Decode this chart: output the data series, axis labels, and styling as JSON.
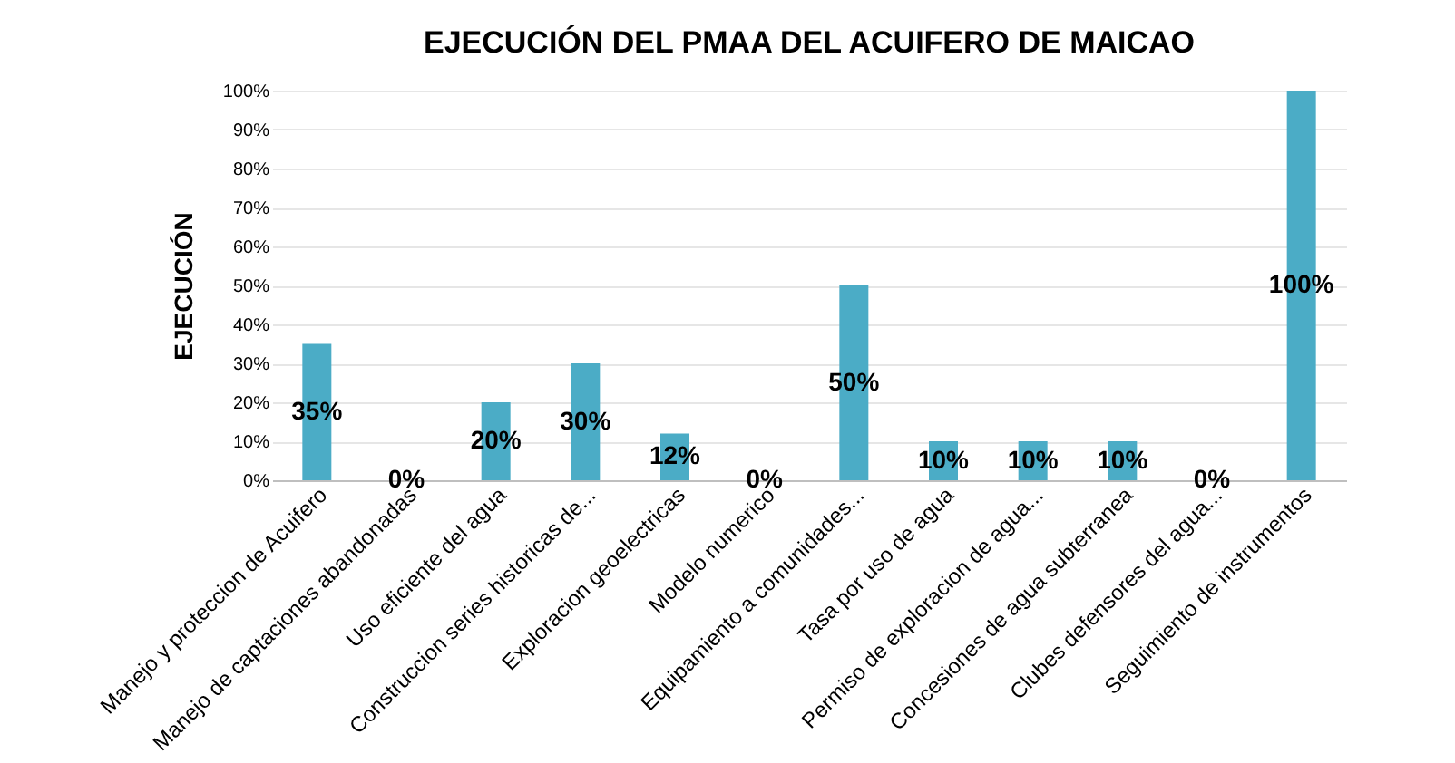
{
  "chart_data": {
    "type": "bar",
    "title": "EJECUCIÓN DEL PMAA DEL ACUIFERO DE MAICAO",
    "ylabel": "EJECUCIÓN",
    "categories": [
      "Manejo y proteccion de Acuifero",
      "Manejo de captaciones abandonadas",
      "Uso eficiente del agua",
      "Construccion series historicas de...",
      "Exploracion geoelectricas",
      "Modelo numerico",
      "Equipamiento a comunidades...",
      "Tasa por uso de agua",
      "Permiso de exploracion de agua...",
      "Concesiones de agua subterranea",
      "Clubes defensores del agua...",
      "Seguimiento de instrumentos"
    ],
    "values": [
      35,
      0,
      20,
      30,
      12,
      0,
      50,
      10,
      10,
      10,
      0,
      100
    ],
    "value_labels": [
      "35%",
      "0%",
      "20%",
      "30%",
      "12%",
      "0%",
      "50%",
      "10%",
      "10%",
      "10%",
      "0%",
      "100%"
    ],
    "color": "#4bacc6",
    "ylim": [
      0,
      100
    ],
    "yticks": [
      {
        "value": 0,
        "label": "0%"
      },
      {
        "value": 10,
        "label": "10%"
      },
      {
        "value": 20,
        "label": "20%"
      },
      {
        "value": 30,
        "label": "30%"
      },
      {
        "value": 40,
        "label": "40%"
      },
      {
        "value": 50,
        "label": "50%"
      },
      {
        "value": 60,
        "label": "60%"
      },
      {
        "value": 70,
        "label": "70%"
      },
      {
        "value": 80,
        "label": "80%"
      },
      {
        "value": 90,
        "label": "90%"
      },
      {
        "value": 100,
        "label": "100%"
      }
    ],
    "grid": "y"
  }
}
